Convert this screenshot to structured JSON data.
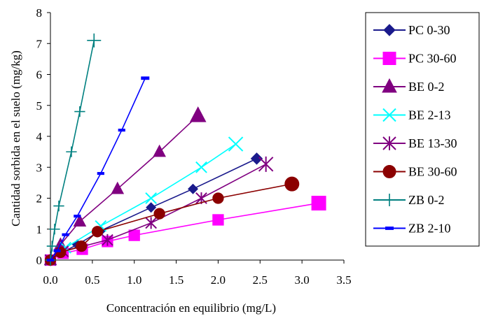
{
  "chart_data": {
    "type": "scatter",
    "title": "",
    "xlabel": "Concentración en equilibrio (mg/L)",
    "ylabel": "Cantidad sorbida en el suelo (mg/kg)",
    "xlim": [
      0,
      3.5
    ],
    "ylim": [
      0,
      8
    ],
    "x_ticks": [
      "0.0",
      "0.5",
      "1.0",
      "1.5",
      "2.0",
      "2.5",
      "3.0",
      "3.5"
    ],
    "y_ticks": [
      "0",
      "1",
      "2",
      "3",
      "4",
      "5",
      "6",
      "7",
      "8"
    ],
    "grid": false,
    "legend_position": "right",
    "series": [
      {
        "name": "PC 0-30",
        "color": "#1a1a8c",
        "marker": "diamond",
        "points": [
          [
            0.0,
            0.0
          ],
          [
            0.12,
            0.22
          ],
          [
            0.32,
            0.5
          ],
          [
            0.6,
            0.95
          ],
          [
            1.2,
            1.7
          ],
          [
            1.7,
            2.3
          ],
          [
            2.46,
            3.28
          ]
        ]
      },
      {
        "name": "PC 30-60",
        "color": "#ff00ff",
        "marker": "square",
        "points": [
          [
            0.0,
            0.0
          ],
          [
            0.15,
            0.22
          ],
          [
            0.38,
            0.35
          ],
          [
            0.68,
            0.6
          ],
          [
            1.0,
            0.8
          ],
          [
            2.0,
            1.3
          ],
          [
            3.2,
            1.84
          ]
        ]
      },
      {
        "name": "BE 0-2",
        "color": "#800080",
        "marker": "triangle",
        "points": [
          [
            0.0,
            0.0
          ],
          [
            0.12,
            0.5
          ],
          [
            0.35,
            1.25
          ],
          [
            0.8,
            2.3
          ],
          [
            1.3,
            3.5
          ],
          [
            1.76,
            4.67
          ]
        ]
      },
      {
        "name": "BE 2-13",
        "color": "#00ffff",
        "marker": "x",
        "points": [
          [
            0.0,
            0.0
          ],
          [
            0.18,
            0.4
          ],
          [
            0.6,
            1.1
          ],
          [
            1.2,
            2.0
          ],
          [
            1.8,
            3.0
          ],
          [
            2.21,
            3.75
          ]
        ]
      },
      {
        "name": "BE 13-30",
        "color": "#800080",
        "marker": "star",
        "points": [
          [
            0.0,
            0.0
          ],
          [
            0.15,
            0.28
          ],
          [
            0.68,
            0.65
          ],
          [
            1.2,
            1.2
          ],
          [
            1.8,
            2.0
          ],
          [
            2.57,
            3.1
          ]
        ]
      },
      {
        "name": "BE 30-60",
        "color": "#8b0000",
        "marker": "circle",
        "points": [
          [
            0.0,
            0.0
          ],
          [
            0.12,
            0.25
          ],
          [
            0.37,
            0.45
          ],
          [
            0.56,
            0.92
          ],
          [
            1.3,
            1.5
          ],
          [
            2.0,
            2.0
          ],
          [
            2.88,
            2.46
          ]
        ]
      },
      {
        "name": "ZB 0-2",
        "color": "#008080",
        "marker": "plus",
        "points": [
          [
            0.0,
            0.0
          ],
          [
            0.02,
            0.45
          ],
          [
            0.05,
            1.0
          ],
          [
            0.1,
            1.75
          ],
          [
            0.25,
            3.5
          ],
          [
            0.35,
            4.8
          ],
          [
            0.52,
            7.1
          ]
        ]
      },
      {
        "name": "ZB 2-10",
        "color": "#0000ff",
        "marker": "dash",
        "points": [
          [
            0.0,
            0.0
          ],
          [
            0.08,
            0.3
          ],
          [
            0.18,
            0.82
          ],
          [
            0.32,
            1.42
          ],
          [
            0.6,
            2.8
          ],
          [
            0.85,
            4.2
          ],
          [
            1.13,
            5.88
          ]
        ]
      }
    ]
  }
}
